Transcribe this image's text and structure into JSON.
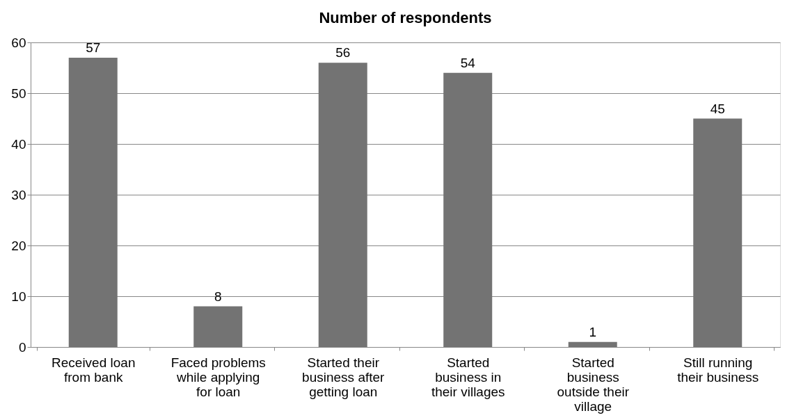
{
  "chart_data": {
    "type": "bar",
    "title": "Number of respondents",
    "categories": [
      "Received loan from bank",
      "Faced problems while applying for loan",
      "Started their business after getting loan",
      "Started business in their villages",
      "Started business outside their village",
      "Still running their business"
    ],
    "values": [
      57,
      8,
      56,
      54,
      1,
      45
    ],
    "color": "#737373",
    "ylim": [
      0,
      60
    ],
    "yticks": [
      0,
      10,
      20,
      30,
      40,
      50,
      60
    ],
    "grid": "y",
    "data_labels": true
  }
}
